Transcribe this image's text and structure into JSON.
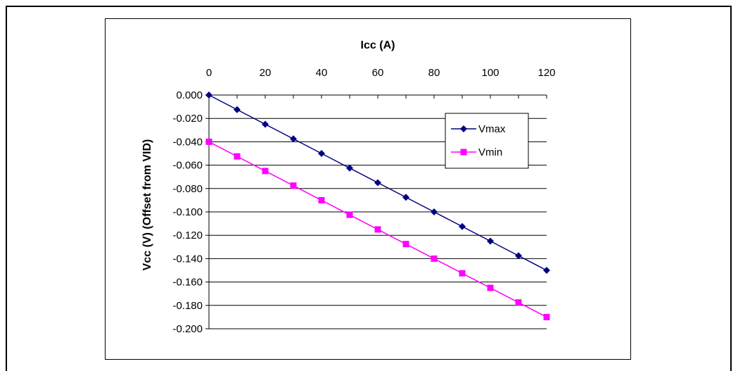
{
  "chart_data": {
    "type": "line",
    "xlabel": "Icc (A)",
    "ylabel": "Vcc (V) (Offset from VID)",
    "xlim": [
      0,
      120
    ],
    "ylim": [
      -0.2,
      0.0
    ],
    "x_ticks": [
      "0",
      "20",
      "40",
      "60",
      "80",
      "100",
      "120"
    ],
    "y_ticks": [
      "0.000",
      "-0.020",
      "-0.040",
      "-0.060",
      "-0.080",
      "-0.100",
      "-0.120",
      "-0.140",
      "-0.160",
      "-0.180",
      "-0.200"
    ],
    "x_axis_position": "top",
    "grid": "horizontal",
    "legend_position": "top-right",
    "x": [
      0,
      10,
      20,
      30,
      40,
      50,
      60,
      70,
      80,
      90,
      100,
      110,
      120
    ],
    "series": [
      {
        "name": "Vmax",
        "color": "#000080",
        "marker": "diamond",
        "values": [
          0.0,
          -0.0125,
          -0.025,
          -0.0375,
          -0.05,
          -0.0625,
          -0.075,
          -0.0875,
          -0.1,
          -0.1125,
          -0.125,
          -0.1375,
          -0.15
        ]
      },
      {
        "name": "Vmin",
        "color": "#FF00FF",
        "marker": "square",
        "values": [
          -0.04,
          -0.0525,
          -0.065,
          -0.0775,
          -0.09,
          -0.1025,
          -0.115,
          -0.1275,
          -0.14,
          -0.1525,
          -0.165,
          -0.1775,
          -0.19
        ]
      }
    ]
  }
}
